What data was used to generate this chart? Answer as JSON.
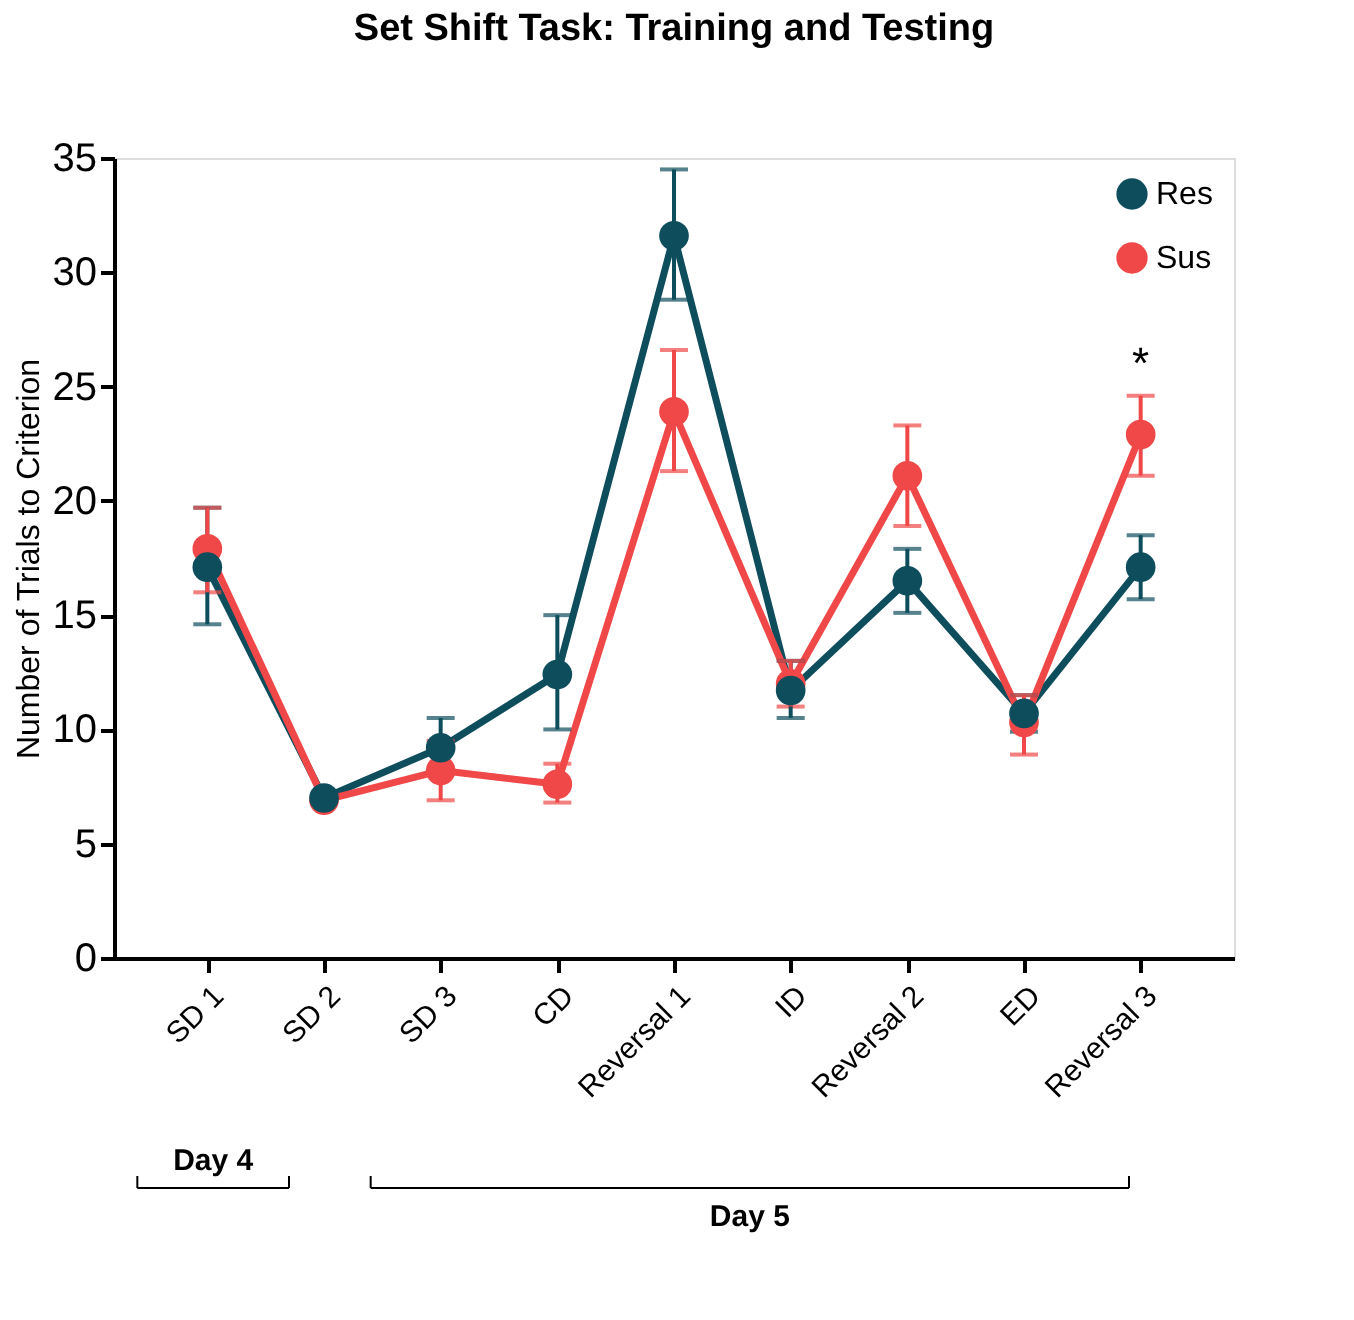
{
  "chart_data": {
    "type": "line",
    "title": "Set Shift Task: Training and Testing",
    "ylabel": "Number of Trials to Criterion",
    "categories": [
      "SD 1",
      "SD 2",
      "SD 3",
      "CD",
      "Reversal 1",
      "ID",
      "Reversal 2",
      "ED",
      "Reversal 3"
    ],
    "series": [
      {
        "name": "Res",
        "color": "#0e4d5c",
        "values": [
          17.1,
          7.0,
          9.2,
          12.4,
          31.6,
          11.7,
          16.5,
          10.7,
          17.1
        ],
        "errors": [
          [
            14.6,
            19.7
          ],
          null,
          [
            9.2,
            10.5
          ],
          [
            10.0,
            15.0
          ],
          [
            28.8,
            34.5
          ],
          [
            10.5,
            13.0
          ],
          [
            15.1,
            17.9
          ],
          [
            9.9,
            11.5
          ],
          [
            15.7,
            18.5
          ]
        ]
      },
      {
        "name": "Sus",
        "color": "#f04848",
        "values": [
          17.9,
          6.9,
          8.2,
          7.6,
          23.9,
          12.0,
          21.1,
          10.3,
          22.9
        ],
        "errors": [
          [
            16.0,
            19.7
          ],
          null,
          [
            6.9,
            9.5
          ],
          [
            6.8,
            8.5
          ],
          [
            21.3,
            26.6
          ],
          [
            11.0,
            13.0
          ],
          [
            18.9,
            23.3
          ],
          [
            8.9,
            11.5
          ],
          [
            21.1,
            24.6
          ]
        ]
      }
    ],
    "ylim": [
      0,
      35
    ],
    "yticks": [
      0,
      5,
      10,
      15,
      20,
      25,
      30,
      35
    ],
    "grid": false,
    "legend": "top right",
    "marker": "circle",
    "line_style": "solid",
    "annotations": [
      "*",
      "Day 4",
      "Day 5"
    ]
  }
}
